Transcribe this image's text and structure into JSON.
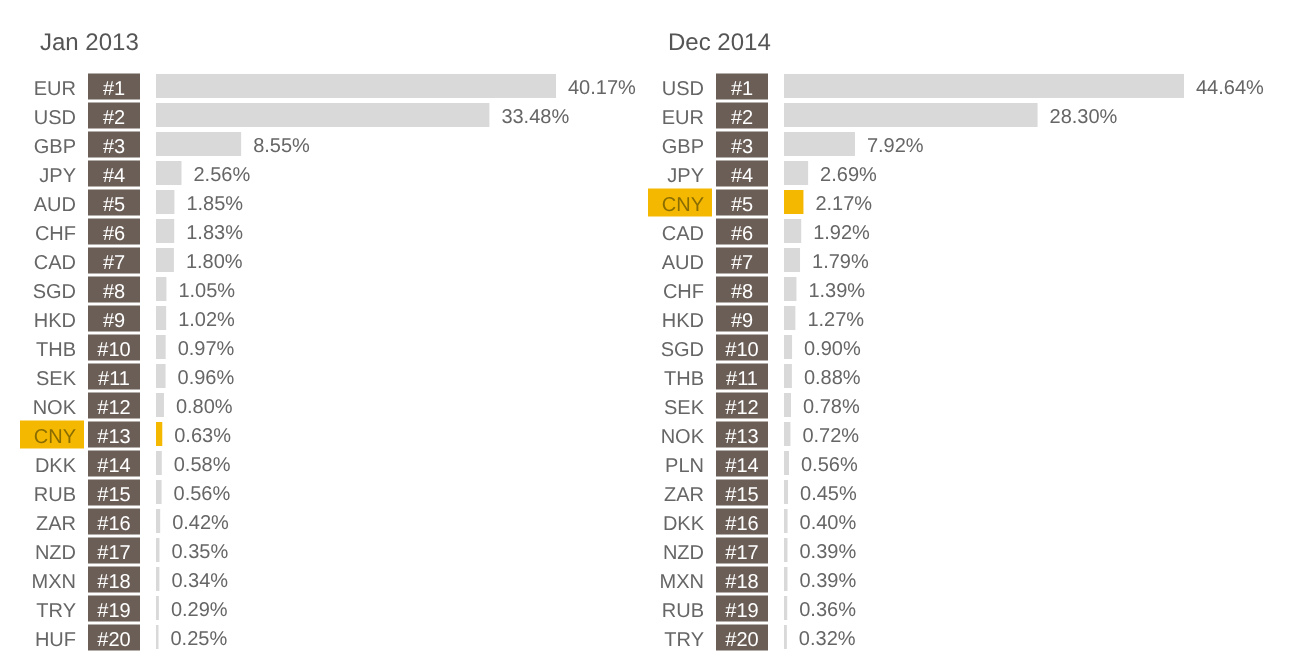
{
  "chart_data": [
    {
      "type": "bar",
      "orientation": "horizontal",
      "title": "Jan 2013",
      "categories": [
        "EUR",
        "USD",
        "GBP",
        "JPY",
        "AUD",
        "CHF",
        "CAD",
        "SGD",
        "HKD",
        "THB",
        "SEK",
        "NOK",
        "CNY",
        "DKK",
        "RUB",
        "ZAR",
        "NZD",
        "MXN",
        "TRY",
        "HUF"
      ],
      "values": [
        40.17,
        33.48,
        8.55,
        2.56,
        1.85,
        1.83,
        1.8,
        1.05,
        1.02,
        0.97,
        0.96,
        0.8,
        0.63,
        0.58,
        0.56,
        0.42,
        0.35,
        0.34,
        0.29,
        0.25
      ],
      "value_labels": [
        "40.17%",
        "33.48%",
        "8.55%",
        "2.56%",
        "1.85%",
        "1.83%",
        "1.80%",
        "1.05%",
        "1.02%",
        "0.97%",
        "0.96%",
        "0.80%",
        "0.63%",
        "0.58%",
        "0.56%",
        "0.42%",
        "0.35%",
        "0.34%",
        "0.29%",
        "0.25%"
      ],
      "color": "#d9d9d9",
      "colors": [
        "#d9d9d9",
        "#d9d9d9",
        "#d9d9d9",
        "#d9d9d9",
        "#d9d9d9",
        "#d9d9d9",
        "#d9d9d9",
        "#d9d9d9",
        "#d9d9d9",
        "#d9d9d9",
        "#d9d9d9",
        "#d9d9d9",
        "#f5b800",
        "#d9d9d9",
        "#d9d9d9",
        "#d9d9d9",
        "#d9d9d9",
        "#d9d9d9",
        "#d9d9d9",
        "#d9d9d9"
      ],
      "annotations": [
        "#1",
        "#2",
        "#3",
        "#4",
        "#5",
        "#6",
        "#7",
        "#8",
        "#9",
        "#10",
        "#11",
        "#12",
        "#13",
        "#14",
        "#15",
        "#16",
        "#17",
        "#18",
        "#19",
        "#20"
      ]
    },
    {
      "type": "bar",
      "orientation": "horizontal",
      "title": "Dec 2014",
      "categories": [
        "USD",
        "EUR",
        "GBP",
        "JPY",
        "CNY",
        "CAD",
        "AUD",
        "CHF",
        "HKD",
        "SGD",
        "THB",
        "SEK",
        "NOK",
        "PLN",
        "ZAR",
        "DKK",
        "NZD",
        "MXN",
        "RUB",
        "TRY"
      ],
      "values": [
        44.64,
        28.3,
        7.92,
        2.69,
        2.17,
        1.92,
        1.79,
        1.39,
        1.27,
        0.9,
        0.88,
        0.78,
        0.72,
        0.56,
        0.45,
        0.4,
        0.39,
        0.39,
        0.36,
        0.32
      ],
      "value_labels": [
        "44.64%",
        "28.30%",
        "7.92%",
        "2.69%",
        "2.17%",
        "1.92%",
        "1.79%",
        "1.39%",
        "1.27%",
        "0.90%",
        "0.88%",
        "0.78%",
        "0.72%",
        "0.56%",
        "0.45%",
        "0.40%",
        "0.39%",
        "0.39%",
        "0.36%",
        "0.32%"
      ],
      "color": "#d9d9d9",
      "colors": [
        "#d9d9d9",
        "#d9d9d9",
        "#d9d9d9",
        "#d9d9d9",
        "#f5b800",
        "#d9d9d9",
        "#d9d9d9",
        "#d9d9d9",
        "#d9d9d9",
        "#d9d9d9",
        "#d9d9d9",
        "#d9d9d9",
        "#d9d9d9",
        "#d9d9d9",
        "#d9d9d9",
        "#d9d9d9",
        "#d9d9d9",
        "#d9d9d9",
        "#d9d9d9",
        "#d9d9d9"
      ],
      "annotations": [
        "#1",
        "#2",
        "#3",
        "#4",
        "#5",
        "#6",
        "#7",
        "#8",
        "#9",
        "#10",
        "#11",
        "#12",
        "#13",
        "#14",
        "#15",
        "#16",
        "#17",
        "#18",
        "#19",
        "#20"
      ]
    }
  ]
}
